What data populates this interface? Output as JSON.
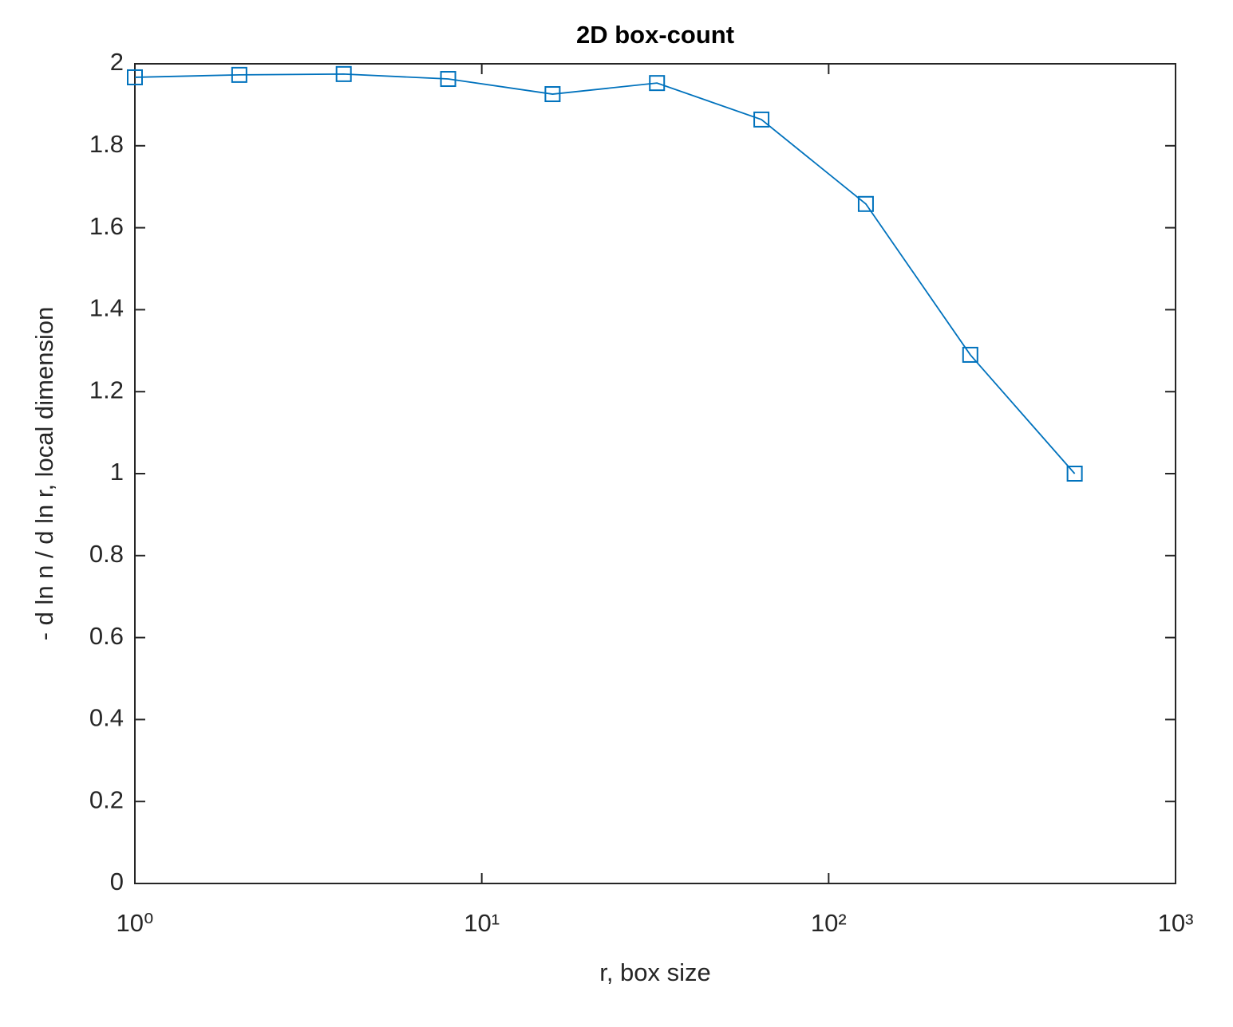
{
  "chart_data": {
    "type": "line",
    "title": "2D box-count",
    "xlabel": "r, box size",
    "ylabel": "- d ln n / d ln r, local dimension",
    "x": [
      1,
      2,
      4,
      8,
      16,
      32,
      64,
      128,
      256,
      512
    ],
    "series": [
      {
        "name": "local dimension",
        "color": "#0072bd",
        "marker": "square",
        "values": [
          1.967,
          1.973,
          1.975,
          1.963,
          1.926,
          1.953,
          1.864,
          1.658,
          1.29,
          1.0
        ]
      }
    ],
    "xscale": "log",
    "xlim": [
      1,
      1000
    ],
    "xticks": [
      {
        "value": 1,
        "label": "10⁰"
      },
      {
        "value": 10,
        "label": "10¹"
      },
      {
        "value": 100,
        "label": "10²"
      },
      {
        "value": 1000,
        "label": "10³"
      }
    ],
    "ylim": [
      0,
      2
    ],
    "yticks": [
      0,
      0.2,
      0.4,
      0.6,
      0.8,
      1,
      1.2,
      1.4,
      1.6,
      1.8,
      2
    ],
    "grid": false,
    "legend": false
  }
}
